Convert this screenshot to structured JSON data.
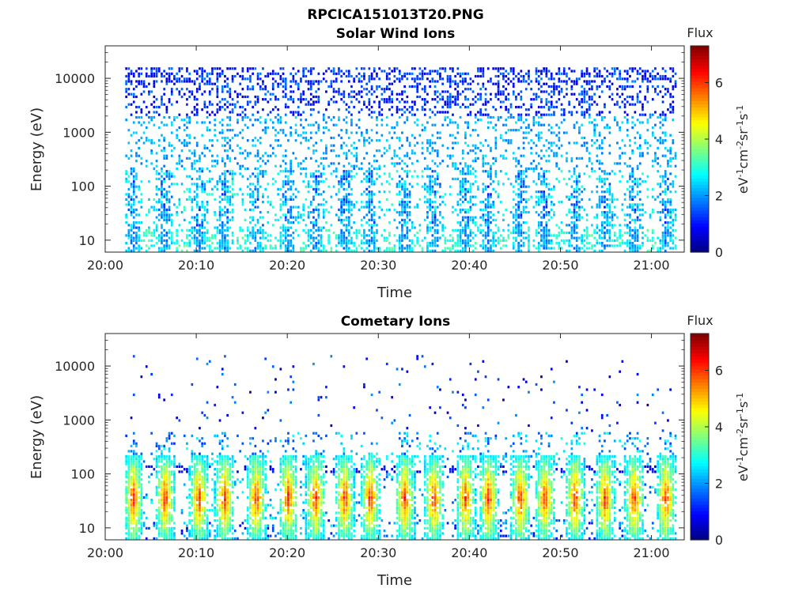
{
  "figure": {
    "title": "RPCICA151013T20.PNG"
  },
  "colormap": "jet",
  "chart_data": [
    {
      "type": "heatmap",
      "title": "Solar Wind Ions",
      "xlabel": "Time",
      "ylabel": "Energy (eV)",
      "y_scale": "log",
      "ylim": [
        6,
        40000
      ],
      "x_range": [
        "20:00",
        "21:03"
      ],
      "x_ticks": [
        "20:00",
        "20:10",
        "20:20",
        "20:30",
        "20:40",
        "20:50",
        "21:00"
      ],
      "y_ticks": [
        "10",
        "100",
        "1000",
        "10000"
      ],
      "colorbar": {
        "label": "Flux",
        "units": "eV-1cm-2sr-1s-1",
        "ticks": [
          "0",
          "2",
          "4",
          "6"
        ],
        "range": [
          0,
          7.3
        ]
      },
      "description": "Scattered low-level flux (~1-3) across 20-15000 eV; bursts of higher flux (~2-4) near 10-100 eV recurring about every 3 minutes."
    },
    {
      "type": "heatmap",
      "title": "Cometary Ions",
      "xlabel": "Time",
      "ylabel": "Energy (eV)",
      "y_scale": "log",
      "ylim": [
        6,
        40000
      ],
      "x_range": [
        "20:00",
        "21:03"
      ],
      "x_ticks": [
        "20:00",
        "20:10",
        "20:20",
        "20:30",
        "20:40",
        "20:50",
        "21:00"
      ],
      "y_ticks": [
        "10",
        "100",
        "1000",
        "10000"
      ],
      "colorbar": {
        "label": "Flux",
        "units": "eV-1cm-2sr-1s-1",
        "ticks": [
          "0",
          "2",
          "4",
          "6"
        ],
        "range": [
          0,
          7.3
        ]
      },
      "burst_centers_min": [
        3.0,
        6.5,
        10.2,
        13.0,
        16.5,
        20.0,
        23.0,
        26.2,
        29.0,
        32.8,
        36.0,
        39.5,
        42.0,
        45.5,
        48.2,
        51.5,
        54.8,
        58.0,
        61.5
      ],
      "burst_peak_energy_eV": 35,
      "burst_peak_flux": 6.3,
      "description": "Periodic bursts of intense flux (up to ~6.5) between 10 and 200 eV roughly every 3 minutes, sparse counts at higher energies."
    }
  ]
}
